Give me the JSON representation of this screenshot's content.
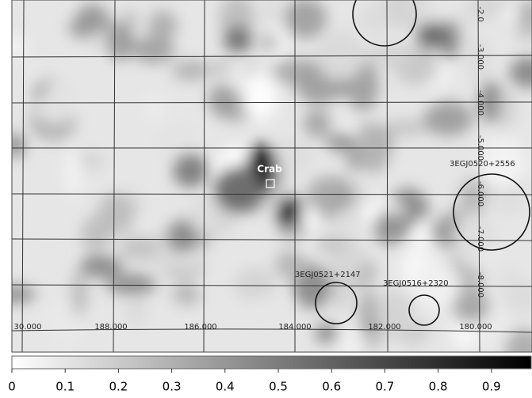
{
  "map": {
    "sources": [
      "Crab",
      "3EGJ0520+2556",
      "3EGJ0521+2147",
      "3EGJ0516+2320"
    ],
    "longitude_labels": [
      "30.000",
      "188.000",
      "186.000",
      "184.000",
      "182.000",
      "180.000"
    ],
    "latitude_labels": [
      "-2.0",
      "-3.000",
      "-4.000",
      "-5.000",
      "-6.000",
      "-7.000",
      "-8.000"
    ]
  },
  "colorbar": {
    "ticks": [
      0,
      0.1,
      0.2,
      0.3,
      0.4,
      0.5,
      0.6,
      0.7,
      0.8,
      0.9
    ]
  }
}
